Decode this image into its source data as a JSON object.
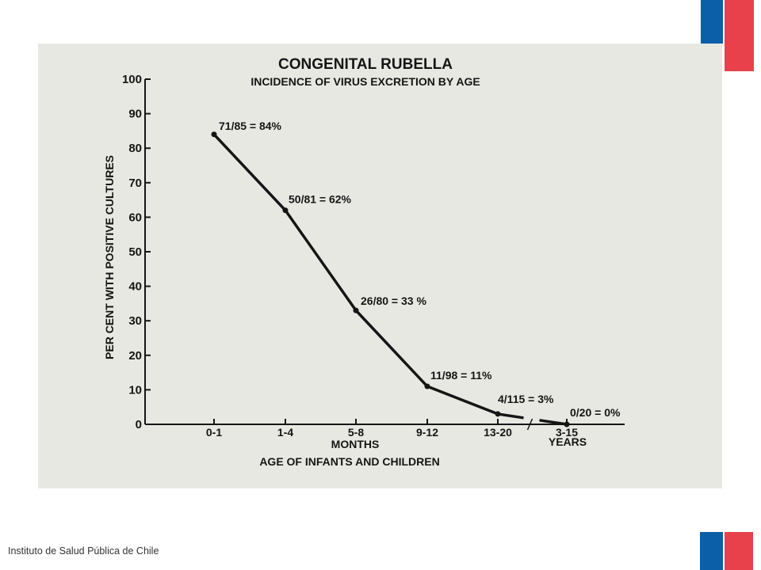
{
  "footer": {
    "institution": "Instituto de Salud Pública de Chile"
  },
  "colors": {
    "flag_blue": "#0b5fa8",
    "flag_red": "#e8414b",
    "slide_bg": "#e8e8e3",
    "ink": "#151515"
  },
  "chart_data": {
    "type": "line",
    "title": "CONGENITAL RUBELLA",
    "subtitle": "INCIDENCE OF VIRUS EXCRETION BY AGE",
    "ylabel": "PER CENT WITH POSITIVE CULTURES",
    "xlabel": "AGE OF INFANTS AND CHILDREN",
    "x_group_labels": [
      "MONTHS",
      "YEARS"
    ],
    "ylim": [
      0,
      100
    ],
    "yticks": [
      0,
      10,
      20,
      30,
      40,
      50,
      60,
      70,
      80,
      90,
      100
    ],
    "categories": [
      "0-1",
      "1-4",
      "5-8",
      "9-12",
      "13-20",
      "3-15"
    ],
    "axis_break_after": "13-20",
    "grid": false,
    "series": [
      {
        "values": [
          84,
          62,
          33,
          11,
          3,
          0
        ],
        "labels": [
          "71/85 = 84%",
          "50/81 = 62%",
          "26/80 = 33 %",
          "11/98 = 11%",
          "4/115 = 3%",
          "0/20 = 0%"
        ]
      }
    ]
  }
}
